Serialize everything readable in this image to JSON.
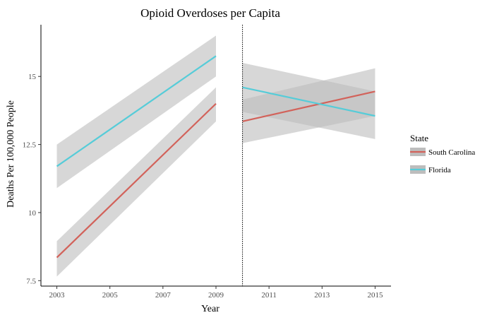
{
  "chart_data": {
    "type": "line",
    "title": "Opioid Overdoses per Capita",
    "xlabel": "Year",
    "ylabel": "Deaths Per 100,000 People",
    "xlim": [
      2002.4,
      2015.6
    ],
    "ylim": [
      7.3,
      16.9
    ],
    "x_ticks": [
      2003,
      2005,
      2007,
      2009,
      2011,
      2013,
      2015
    ],
    "y_ticks": [
      7.5,
      10,
      12.5,
      15
    ],
    "y_tick_labels": [
      "7.5",
      "10",
      "12.5",
      "15"
    ],
    "vline": {
      "x": 2010,
      "style": "dotted"
    },
    "ribbon_color": "#bdbdbd",
    "legend": {
      "title": "State",
      "position": "right"
    },
    "grid": false,
    "series": [
      {
        "name": "South Carolina",
        "color": "#d2625a",
        "segments": [
          {
            "x": [
              2003,
              2009
            ],
            "y": [
              8.35,
              14.0
            ],
            "lower": [
              7.65,
              13.35
            ],
            "upper": [
              8.95,
              14.6
            ]
          },
          {
            "x": [
              2010,
              2015
            ],
            "y": [
              13.35,
              14.45
            ],
            "lower": [
              12.55,
              13.55
            ],
            "upper": [
              14.15,
              15.3
            ]
          }
        ]
      },
      {
        "name": "Florida",
        "color": "#56ccd8",
        "segments": [
          {
            "x": [
              2003,
              2009
            ],
            "y": [
              11.7,
              15.75
            ],
            "lower": [
              10.9,
              15.0
            ],
            "upper": [
              12.5,
              16.5
            ]
          },
          {
            "x": [
              2010,
              2015
            ],
            "y": [
              14.6,
              13.55
            ],
            "lower": [
              13.7,
              12.7
            ],
            "upper": [
              15.5,
              14.45
            ]
          }
        ]
      }
    ]
  }
}
